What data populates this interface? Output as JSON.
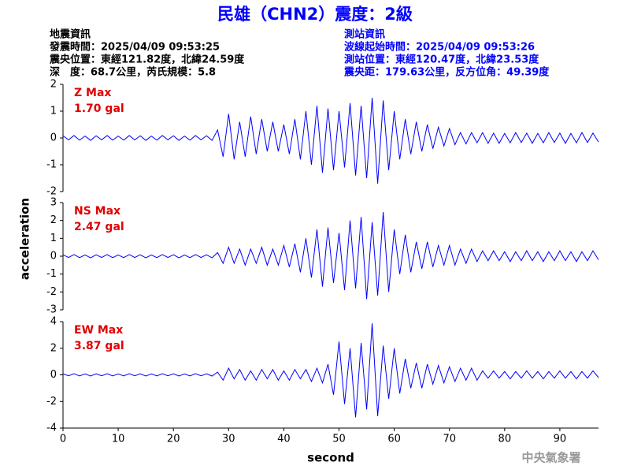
{
  "header": {
    "title": "民雄（CHN2）震度：2級",
    "event_info": [
      "地震資訊",
      "發震時間：2025/04/09 09:53:25",
      "震央位置：東經121.82度，北緯24.59度",
      "深　度：68.7公里，芮氏規模：5.8"
    ],
    "station_info": [
      "測站資訊",
      "波線起始時間：2025/04/09 09:53:26",
      "測站位置：東經120.47度，北緯23.53度",
      "震央距：179.63公里，反方位角：49.39度"
    ]
  },
  "y_label": "acceleration",
  "footer": "中央氣象署",
  "chart_data": [
    {
      "type": "line",
      "annotations": [
        "Z Max",
        "1.70 gal"
      ],
      "annotation_color": "#e00000",
      "x": [
        0,
        1,
        2,
        3,
        4,
        5,
        6,
        7,
        8,
        9,
        10,
        11,
        12,
        13,
        14,
        15,
        16,
        17,
        18,
        19,
        20,
        21,
        22,
        23,
        24,
        25,
        26,
        27,
        28,
        29,
        30,
        31,
        32,
        33,
        34,
        35,
        36,
        37,
        38,
        39,
        40,
        41,
        42,
        43,
        44,
        45,
        46,
        47,
        48,
        49,
        50,
        51,
        52,
        53,
        54,
        55,
        56,
        57,
        58,
        59,
        60,
        61,
        62,
        63,
        64,
        65,
        66,
        67,
        68,
        69,
        70,
        71,
        72,
        73,
        74,
        75,
        76,
        77,
        78,
        79,
        80,
        81,
        82,
        83,
        84,
        85,
        86,
        87,
        88,
        89,
        90,
        91,
        92,
        93,
        94,
        95,
        96,
        97
      ],
      "xlim": [
        0,
        97
      ],
      "ylim": [
        -2,
        2
      ],
      "yticks": [
        2,
        1,
        0,
        -1,
        -2
      ],
      "series": [
        {
          "color": "#0000ff",
          "values": [
            0.08,
            -0.07,
            0.09,
            -0.08,
            0.07,
            -0.09,
            0.08,
            -0.07,
            0.09,
            -0.08,
            0.07,
            -0.08,
            0.09,
            -0.07,
            0.08,
            -0.09,
            0.07,
            -0.08,
            0.09,
            -0.07,
            0.08,
            -0.09,
            0.07,
            -0.08,
            0.09,
            -0.07,
            0.08,
            -0.09,
            0.3,
            -0.7,
            0.9,
            -0.8,
            0.6,
            -0.7,
            0.8,
            -0.6,
            0.7,
            -0.5,
            0.6,
            -0.5,
            0.5,
            -0.6,
            0.7,
            -0.8,
            1.0,
            -1.0,
            1.2,
            -1.3,
            1.1,
            -1.2,
            1.0,
            -1.1,
            1.3,
            -1.4,
            1.2,
            -1.5,
            1.5,
            -1.7,
            1.4,
            -1.2,
            1.0,
            -0.8,
            0.7,
            -0.6,
            0.6,
            -0.5,
            0.5,
            -0.4,
            0.4,
            -0.3,
            0.35,
            -0.25,
            0.2,
            -0.22,
            0.2,
            -0.18,
            0.2,
            -0.2,
            0.18,
            -0.2,
            0.17,
            -0.18,
            0.2,
            -0.17,
            0.18,
            -0.2,
            0.17,
            -0.18,
            0.2,
            -0.17,
            0.18,
            -0.2,
            0.17,
            -0.18,
            0.2,
            -0.17,
            0.18,
            -0.15
          ]
        }
      ]
    },
    {
      "type": "line",
      "annotations": [
        "NS Max",
        "2.47 gal"
      ],
      "annotation_color": "#e00000",
      "x": [
        0,
        1,
        2,
        3,
        4,
        5,
        6,
        7,
        8,
        9,
        10,
        11,
        12,
        13,
        14,
        15,
        16,
        17,
        18,
        19,
        20,
        21,
        22,
        23,
        24,
        25,
        26,
        27,
        28,
        29,
        30,
        31,
        32,
        33,
        34,
        35,
        36,
        37,
        38,
        39,
        40,
        41,
        42,
        43,
        44,
        45,
        46,
        47,
        48,
        49,
        50,
        51,
        52,
        53,
        54,
        55,
        56,
        57,
        58,
        59,
        60,
        61,
        62,
        63,
        64,
        65,
        66,
        67,
        68,
        69,
        70,
        71,
        72,
        73,
        74,
        75,
        76,
        77,
        78,
        79,
        80,
        81,
        82,
        83,
        84,
        85,
        86,
        87,
        88,
        89,
        90,
        91,
        92,
        93,
        94,
        95,
        96,
        97
      ],
      "xlim": [
        0,
        97
      ],
      "ylim": [
        -3,
        3
      ],
      "yticks": [
        3,
        2,
        1,
        0,
        -1,
        -2,
        -3
      ],
      "series": [
        {
          "color": "#0000ff",
          "values": [
            0.08,
            -0.07,
            0.09,
            -0.08,
            0.07,
            -0.09,
            0.08,
            -0.07,
            0.09,
            -0.08,
            0.07,
            -0.08,
            0.09,
            -0.07,
            0.08,
            -0.09,
            0.07,
            -0.08,
            0.09,
            -0.07,
            0.08,
            -0.09,
            0.07,
            -0.08,
            0.09,
            -0.07,
            0.08,
            -0.09,
            0.2,
            -0.4,
            0.5,
            -0.4,
            0.4,
            -0.5,
            0.4,
            -0.4,
            0.5,
            -0.5,
            0.4,
            -0.5,
            0.6,
            -0.6,
            0.7,
            -0.9,
            1.0,
            -1.2,
            1.5,
            -1.7,
            1.6,
            -1.5,
            1.3,
            -1.9,
            2.0,
            -1.8,
            2.2,
            -2.4,
            1.9,
            -2.2,
            2.47,
            -2.0,
            1.5,
            -1.0,
            1.2,
            -0.9,
            0.8,
            -0.7,
            0.8,
            -0.6,
            0.6,
            -0.5,
            0.6,
            -0.5,
            0.4,
            -0.4,
            0.4,
            -0.3,
            0.3,
            -0.25,
            0.3,
            -0.25,
            0.25,
            -0.3,
            0.25,
            -0.25,
            0.3,
            -0.25,
            0.25,
            -0.3,
            0.25,
            -0.25,
            0.3,
            -0.25,
            0.25,
            -0.3,
            0.25,
            -0.25,
            0.3,
            -0.2
          ]
        }
      ]
    },
    {
      "type": "line",
      "annotations": [
        "EW Max",
        "3.87 gal"
      ],
      "annotation_color": "#e00000",
      "x": [
        0,
        1,
        2,
        3,
        4,
        5,
        6,
        7,
        8,
        9,
        10,
        11,
        12,
        13,
        14,
        15,
        16,
        17,
        18,
        19,
        20,
        21,
        22,
        23,
        24,
        25,
        26,
        27,
        28,
        29,
        30,
        31,
        32,
        33,
        34,
        35,
        36,
        37,
        38,
        39,
        40,
        41,
        42,
        43,
        44,
        45,
        46,
        47,
        48,
        49,
        50,
        51,
        52,
        53,
        54,
        55,
        56,
        57,
        58,
        59,
        60,
        61,
        62,
        63,
        64,
        65,
        66,
        67,
        68,
        69,
        70,
        71,
        72,
        73,
        74,
        75,
        76,
        77,
        78,
        79,
        80,
        81,
        82,
        83,
        84,
        85,
        86,
        87,
        88,
        89,
        90,
        91,
        92,
        93,
        94,
        95,
        96,
        97
      ],
      "xlim": [
        0,
        97
      ],
      "ylim": [
        -4,
        4
      ],
      "yticks": [
        4,
        2,
        0,
        -2,
        -4
      ],
      "xticks": [
        0,
        10,
        20,
        30,
        40,
        50,
        60,
        70,
        80,
        90
      ],
      "x_label": "second",
      "series": [
        {
          "color": "#0000ff",
          "values": [
            0.08,
            -0.07,
            0.09,
            -0.08,
            0.07,
            -0.09,
            0.08,
            -0.07,
            0.09,
            -0.08,
            0.07,
            -0.08,
            0.09,
            -0.07,
            0.08,
            -0.09,
            0.07,
            -0.08,
            0.09,
            -0.07,
            0.08,
            -0.09,
            0.07,
            -0.08,
            0.09,
            -0.07,
            0.08,
            -0.09,
            0.2,
            -0.4,
            0.5,
            -0.3,
            0.4,
            -0.4,
            0.3,
            -0.4,
            0.4,
            -0.3,
            0.4,
            -0.4,
            0.3,
            -0.4,
            0.4,
            -0.3,
            0.4,
            -0.5,
            0.5,
            -0.6,
            0.8,
            -1.5,
            2.5,
            -2.2,
            2.0,
            -3.2,
            2.4,
            -2.6,
            3.87,
            -3.1,
            2.2,
            -1.8,
            2.0,
            -1.4,
            1.2,
            -1.0,
            0.9,
            -1.0,
            0.8,
            -0.7,
            0.7,
            -0.6,
            0.6,
            -0.5,
            0.5,
            -0.4,
            0.5,
            -0.4,
            0.3,
            -0.25,
            0.3,
            -0.25,
            0.25,
            -0.3,
            0.25,
            -0.25,
            0.3,
            -0.25,
            0.25,
            -0.3,
            0.25,
            -0.25,
            0.3,
            -0.25,
            0.25,
            -0.3,
            0.25,
            -0.25,
            0.3,
            -0.2
          ]
        }
      ]
    }
  ]
}
